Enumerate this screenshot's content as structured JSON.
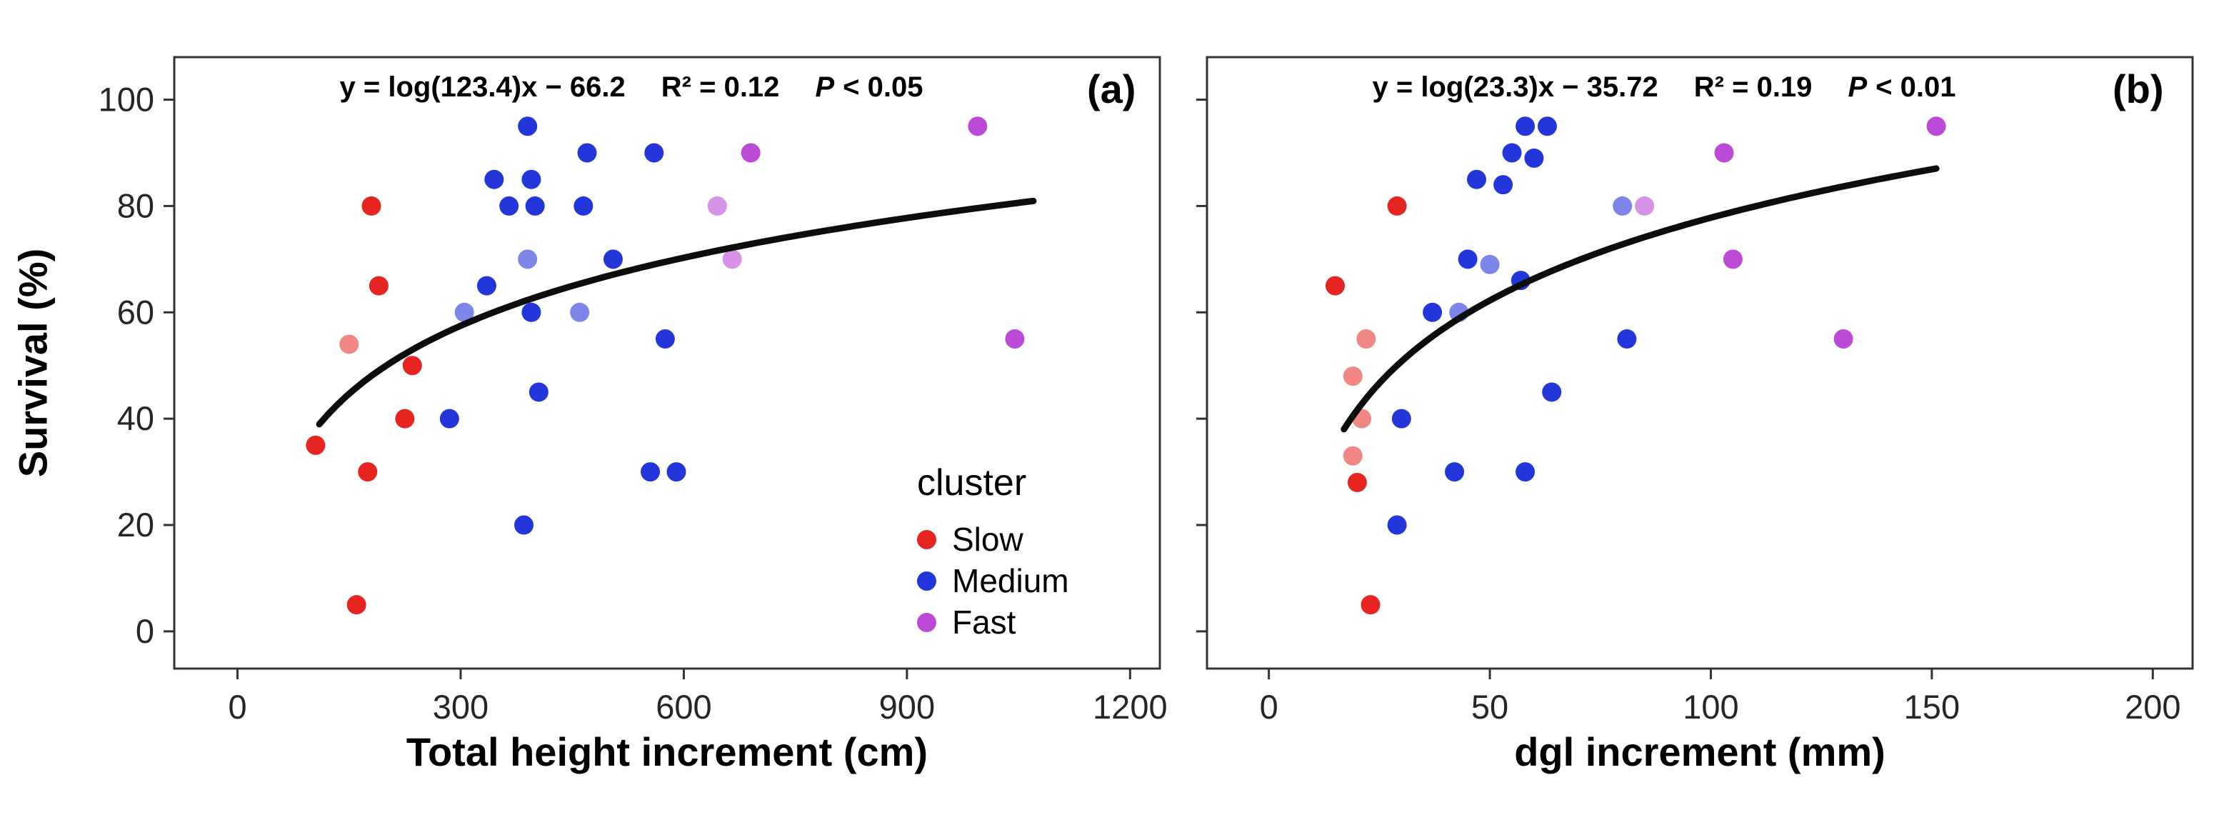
{
  "figure": {
    "background": "#ffffff",
    "y_axis_label": "Survival (%)"
  },
  "legend": {
    "title": "cluster",
    "position": "inside-panel-a",
    "items": [
      {
        "label": "Slow",
        "color": "#e62520"
      },
      {
        "label": "Medium",
        "color": "#2336d9"
      },
      {
        "label": "Fast",
        "color": "#bb4bd6"
      }
    ]
  },
  "chart_data": [
    {
      "type": "scatter",
      "panel_label": "(a)",
      "equation": {
        "formula": "y = log(123.4)x − 66.2",
        "r_squared": "R² = 0.12",
        "p_label": "P",
        "p_value": "< 0.05"
      },
      "xlabel": "Total height increment (cm)",
      "ylabel": "Survival (%)",
      "xlim": [
        -85,
        1240
      ],
      "ylim": [
        -7,
        108
      ],
      "x_ticks": [
        0,
        300,
        600,
        900,
        1200
      ],
      "y_ticks": [
        0,
        20,
        40,
        60,
        80,
        100
      ],
      "y_tick_labels_shown": true,
      "grid": false,
      "series": [
        {
          "name": "Slow",
          "color": "#e62520",
          "points": [
            [
              180,
              80
            ],
            [
              190,
              65
            ],
            [
              150,
              54,
              0.55
            ],
            [
              235,
              50
            ],
            [
              225,
              40
            ],
            [
              105,
              35
            ],
            [
              175,
              30
            ],
            [
              160,
              5
            ]
          ]
        },
        {
          "name": "Medium",
          "color": "#2336d9",
          "points": [
            [
              390,
              95
            ],
            [
              470,
              90
            ],
            [
              560,
              90
            ],
            [
              345,
              85
            ],
            [
              395,
              85
            ],
            [
              365,
              80
            ],
            [
              400,
              80
            ],
            [
              465,
              80
            ],
            [
              390,
              70,
              0.6
            ],
            [
              505,
              70
            ],
            [
              335,
              65
            ],
            [
              305,
              60,
              0.6
            ],
            [
              395,
              60
            ],
            [
              460,
              60,
              0.6
            ],
            [
              575,
              55
            ],
            [
              405,
              45
            ],
            [
              285,
              40
            ],
            [
              555,
              30
            ],
            [
              590,
              30
            ],
            [
              385,
              20
            ]
          ]
        },
        {
          "name": "Fast",
          "color": "#bb4bd6",
          "points": [
            [
              995,
              95
            ],
            [
              690,
              90
            ],
            [
              645,
              80,
              0.6
            ],
            [
              665,
              70,
              0.6
            ],
            [
              1045,
              55
            ]
          ]
        }
      ],
      "fit_curve": {
        "slope": 42.5,
        "intercept": -47.8,
        "x_start": 110,
        "x_end": 1070,
        "color": "#0d0d0d"
      }
    },
    {
      "type": "scatter",
      "panel_label": "(b)",
      "equation": {
        "formula": "y = log(23.3)x − 35.72",
        "r_squared": "R² = 0.19",
        "p_label": "P",
        "p_value": "< 0.01"
      },
      "xlabel": "dgl increment (mm)",
      "ylabel": "Survival (%)",
      "xlim": [
        -14,
        209
      ],
      "ylim": [
        -7,
        108
      ],
      "x_ticks": [
        0,
        50,
        100,
        150,
        200
      ],
      "y_ticks": [
        0,
        20,
        40,
        60,
        80,
        100
      ],
      "y_tick_labels_shown": false,
      "grid": false,
      "series": [
        {
          "name": "Slow",
          "color": "#e62520",
          "points": [
            [
              29,
              80
            ],
            [
              15,
              65
            ],
            [
              22,
              55,
              0.55
            ],
            [
              19,
              48,
              0.55
            ],
            [
              21,
              40,
              0.55
            ],
            [
              19,
              33,
              0.55
            ],
            [
              20,
              28
            ],
            [
              23,
              5
            ]
          ]
        },
        {
          "name": "Medium",
          "color": "#2336d9",
          "points": [
            [
              58,
              95
            ],
            [
              63,
              95
            ],
            [
              55,
              90
            ],
            [
              60,
              89
            ],
            [
              47,
              85
            ],
            [
              53,
              84
            ],
            [
              45,
              70
            ],
            [
              50,
              69,
              0.6
            ],
            [
              57,
              66
            ],
            [
              37,
              60
            ],
            [
              43,
              60,
              0.6
            ],
            [
              80,
              80,
              0.6
            ],
            [
              81,
              55
            ],
            [
              64,
              45
            ],
            [
              30,
              40
            ],
            [
              42,
              30
            ],
            [
              58,
              30
            ],
            [
              29,
              20
            ]
          ]
        },
        {
          "name": "Fast",
          "color": "#bb4bd6",
          "points": [
            [
              151,
              95
            ],
            [
              103,
              90
            ],
            [
              85,
              80,
              0.6
            ],
            [
              105,
              70
            ],
            [
              130,
              55
            ]
          ]
        }
      ],
      "fit_curve": {
        "slope": 51.7,
        "intercept": -25.6,
        "x_start": 17,
        "x_end": 151,
        "color": "#0d0d0d"
      }
    }
  ]
}
